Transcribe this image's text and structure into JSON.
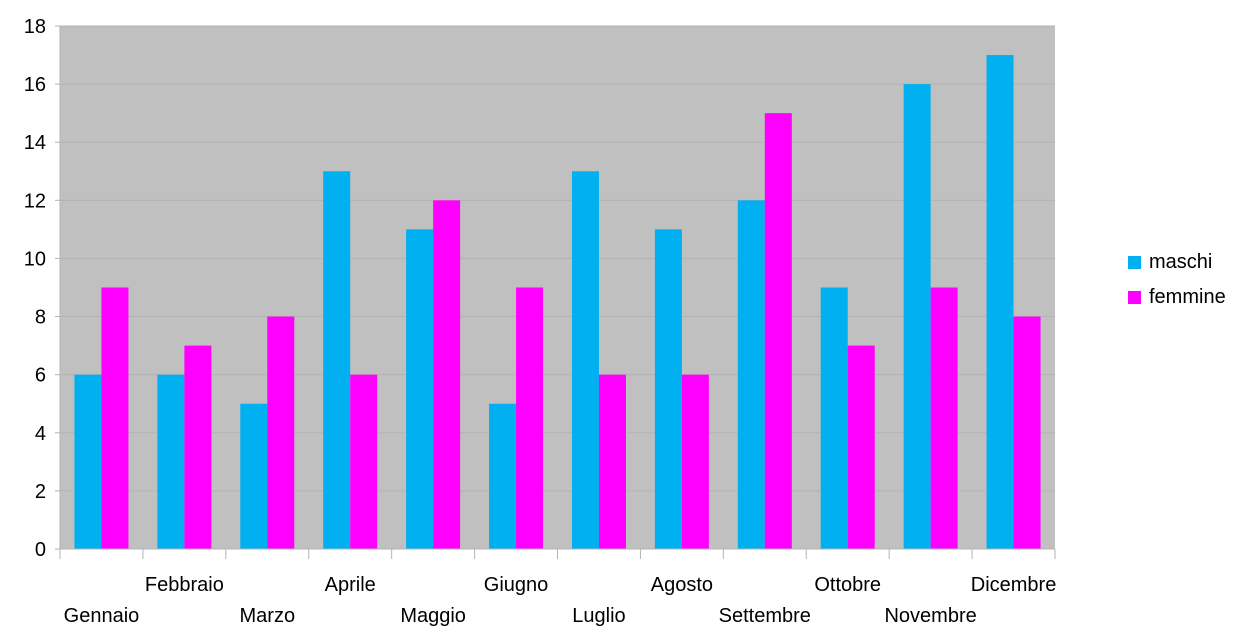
{
  "chart_data": {
    "type": "bar",
    "categories": [
      "Gennaio",
      "Febbraio",
      "Marzo",
      "Aprile",
      "Maggio",
      "Giugno",
      "Luglio",
      "Agosto",
      "Settembre",
      "Ottobre",
      "Novembre",
      "Dicembre"
    ],
    "series": [
      {
        "name": "maschi",
        "color": "#00b0f0",
        "values": [
          6,
          6,
          5,
          13,
          11,
          5,
          13,
          11,
          12,
          9,
          16,
          17
        ]
      },
      {
        "name": "femmine",
        "color": "#ff00ff",
        "values": [
          9,
          7,
          8,
          6,
          12,
          9,
          6,
          6,
          15,
          7,
          9,
          8
        ]
      }
    ],
    "ylim": [
      0,
      18
    ],
    "yticks": [
      0,
      2,
      4,
      6,
      8,
      10,
      12,
      14,
      16,
      18
    ],
    "grid": true,
    "legend_position": "right",
    "plot_background": "#c0c0c0",
    "gridline_color": "#b3b3b3"
  }
}
